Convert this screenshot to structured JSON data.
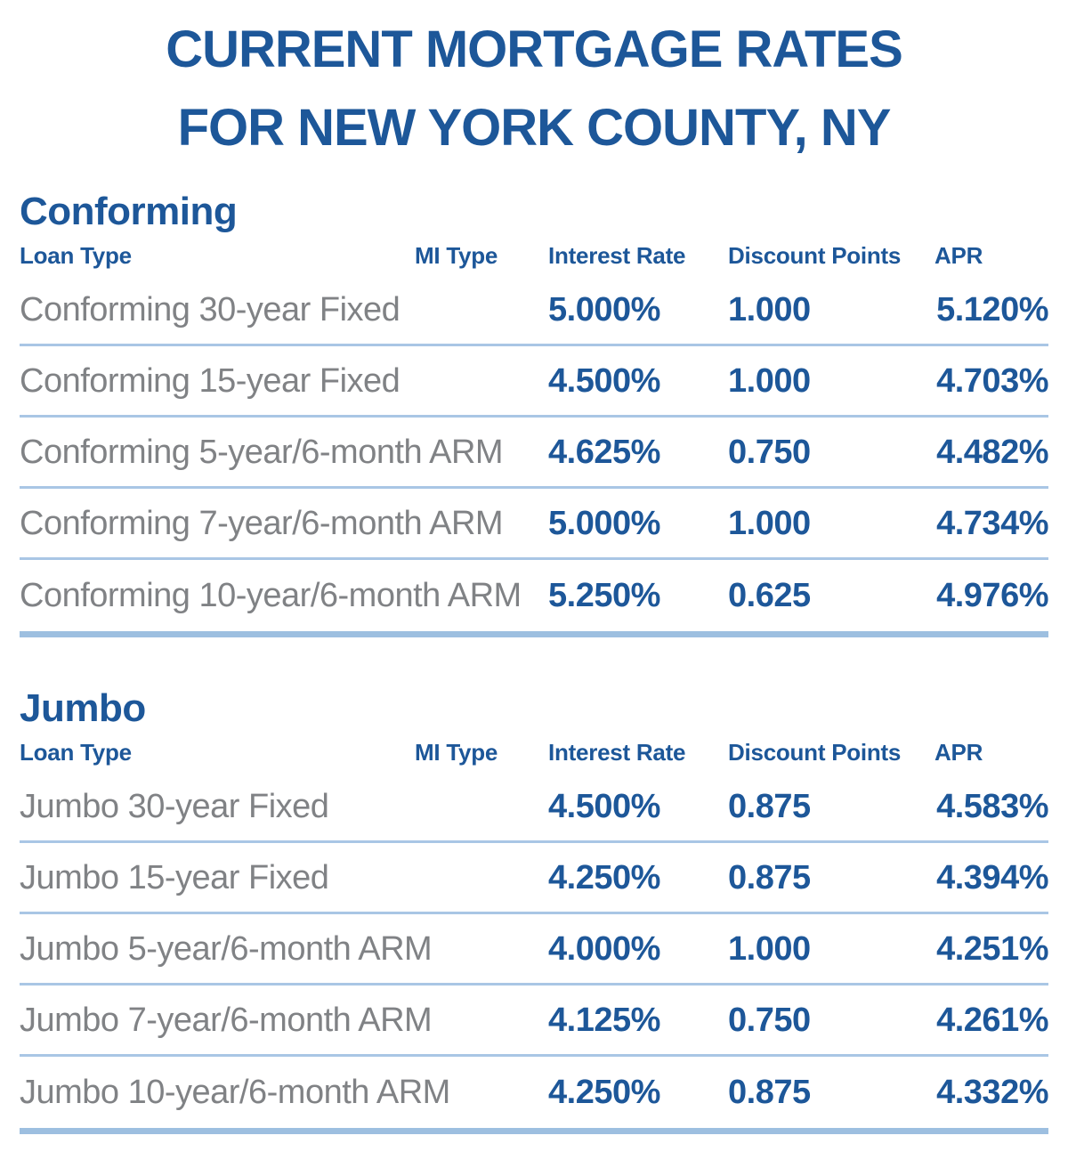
{
  "title": {
    "line1": "CURRENT MORTGAGE RATES",
    "line2": "FOR NEW YORK COUNTY, NY"
  },
  "columns": [
    "Loan Type",
    "MI Type",
    "Interest Rate",
    "Discount Points",
    "APR"
  ],
  "sections": [
    {
      "heading": "Conforming",
      "rows": [
        {
          "loan_type": "Conforming 30-year Fixed",
          "mi_type": "",
          "interest_rate": "5.000%",
          "discount_points": "1.000",
          "apr": "5.120%"
        },
        {
          "loan_type": "Conforming 15-year Fixed",
          "mi_type": "",
          "interest_rate": "4.500%",
          "discount_points": "1.000",
          "apr": "4.703%"
        },
        {
          "loan_type": "Conforming 5-year/6-month ARM",
          "mi_type": "",
          "interest_rate": "4.625%",
          "discount_points": "0.750",
          "apr": "4.482%"
        },
        {
          "loan_type": "Conforming 7-year/6-month ARM",
          "mi_type": "",
          "interest_rate": "5.000%",
          "discount_points": "1.000",
          "apr": "4.734%"
        },
        {
          "loan_type": "Conforming 10-year/6-month ARM",
          "mi_type": "",
          "interest_rate": "5.250%",
          "discount_points": "0.625",
          "apr": "4.976%"
        }
      ]
    },
    {
      "heading": "Jumbo",
      "rows": [
        {
          "loan_type": "Jumbo 30-year Fixed",
          "mi_type": "",
          "interest_rate": "4.500%",
          "discount_points": "0.875",
          "apr": "4.583%"
        },
        {
          "loan_type": "Jumbo 15-year Fixed",
          "mi_type": "",
          "interest_rate": "4.250%",
          "discount_points": "0.875",
          "apr": "4.394%"
        },
        {
          "loan_type": "Jumbo 5-year/6-month ARM",
          "mi_type": "",
          "interest_rate": "4.000%",
          "discount_points": "1.000",
          "apr": "4.251%"
        },
        {
          "loan_type": "Jumbo 7-year/6-month ARM",
          "mi_type": "",
          "interest_rate": "4.125%",
          "discount_points": "0.750",
          "apr": "4.261%"
        },
        {
          "loan_type": "Jumbo 10-year/6-month ARM",
          "mi_type": "",
          "interest_rate": "4.250%",
          "discount_points": "0.875",
          "apr": "4.332%"
        }
      ]
    }
  ],
  "colors": {
    "brand_blue": "#1d5799",
    "text_gray": "#808285",
    "divider_light": "#a9c6e5",
    "divider_thick": "#9dbfe0"
  }
}
